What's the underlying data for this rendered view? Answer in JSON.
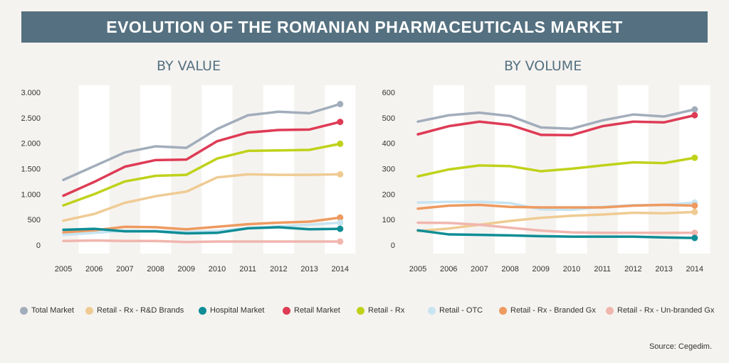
{
  "header": {
    "title": "EVOLUTION OF THE ROMANIAN PHARMACEUTICALS MARKET"
  },
  "source": "Source: Cegedim.",
  "colors": {
    "total": "#a2adbb",
    "rd": "#efcb93",
    "hospital": "#0f8d96",
    "retail": "#de3b55",
    "rx": "#bfd21a",
    "otc": "#c7e4f1",
    "branded": "#ee9a60",
    "unbranded": "#f0b6ae"
  },
  "legend": [
    {
      "key": "total",
      "label": "Total Market"
    },
    {
      "key": "rd",
      "label": "Retail - Rx - R&D Brands"
    },
    {
      "key": "hospital",
      "label": "Hospital Market"
    },
    {
      "key": "retail",
      "label": "Retail Market"
    },
    {
      "key": "rx",
      "label": "Retail - Rx"
    },
    {
      "key": "otc",
      "label": "Retail - OTC"
    },
    {
      "key": "branded",
      "label": "Retail - Rx - Branded Gx"
    },
    {
      "key": "unbranded",
      "label": "Retail - Rx - Un-branded Gx"
    }
  ],
  "chart_data": [
    {
      "type": "line",
      "title": "BY VALUE",
      "categories": [
        "2005",
        "2006",
        "2007",
        "2008",
        "2009",
        "2010",
        "2011",
        "2012",
        "2013",
        "2014"
      ],
      "ylim": [
        0,
        3000
      ],
      "yticks": [
        0,
        500,
        1000,
        1500,
        2000,
        2500,
        3000
      ],
      "ytick_labels": [
        "0",
        "500",
        "1.000",
        "1.500",
        "2.000",
        "2.500",
        "3.000"
      ],
      "series": [
        {
          "key": "total",
          "name": "Total Market",
          "values": [
            1280,
            1550,
            1820,
            1940,
            1910,
            2280,
            2550,
            2620,
            2590,
            2770
          ]
        },
        {
          "key": "retail",
          "name": "Retail Market",
          "values": [
            970,
            1240,
            1540,
            1670,
            1680,
            2040,
            2210,
            2260,
            2270,
            2420
          ]
        },
        {
          "key": "rx",
          "name": "Retail - Rx",
          "values": [
            780,
            1000,
            1250,
            1360,
            1380,
            1700,
            1850,
            1860,
            1870,
            1990
          ]
        },
        {
          "key": "rd",
          "name": "Retail - Rx - R&D Brands",
          "values": [
            480,
            610,
            830,
            960,
            1050,
            1330,
            1390,
            1380,
            1380,
            1390
          ]
        },
        {
          "key": "branded",
          "name": "Retail - Rx - Branded Gx",
          "values": [
            250,
            290,
            360,
            350,
            310,
            360,
            410,
            440,
            460,
            540
          ]
        },
        {
          "key": "otc",
          "name": "Retail - OTC",
          "values": [
            200,
            240,
            280,
            280,
            260,
            280,
            330,
            370,
            400,
            440
          ]
        },
        {
          "key": "hospital",
          "name": "Hospital Market",
          "values": [
            300,
            320,
            270,
            270,
            230,
            240,
            330,
            350,
            310,
            320
          ]
        },
        {
          "key": "unbranded",
          "name": "Retail - Rx - Un-branded Gx",
          "values": [
            80,
            90,
            80,
            80,
            60,
            70,
            70,
            70,
            70,
            70
          ]
        }
      ]
    },
    {
      "type": "line",
      "title": "BY VOLUME",
      "categories": [
        "2005",
        "2006",
        "2007",
        "2008",
        "2009",
        "2010",
        "2011",
        "2012",
        "2013",
        "2014"
      ],
      "ylim": [
        0,
        600
      ],
      "yticks": [
        0,
        100,
        200,
        300,
        400,
        500,
        600
      ],
      "ytick_labels": [
        "0",
        "100",
        "200",
        "300",
        "400",
        "500",
        "600"
      ],
      "series": [
        {
          "key": "total",
          "name": "Total Market",
          "values": [
            485,
            510,
            520,
            507,
            462,
            457,
            490,
            513,
            505,
            533
          ]
        },
        {
          "key": "retail",
          "name": "Retail Market",
          "values": [
            435,
            467,
            485,
            472,
            433,
            432,
            467,
            485,
            482,
            510
          ]
        },
        {
          "key": "rx",
          "name": "Retail - Rx",
          "values": [
            270,
            297,
            313,
            310,
            290,
            300,
            313,
            325,
            322,
            343
          ]
        },
        {
          "key": "otc",
          "name": "Retail - OTC",
          "values": [
            167,
            170,
            170,
            165,
            140,
            138,
            150,
            157,
            158,
            167
          ]
        },
        {
          "key": "branded",
          "name": "Retail - Rx - Branded Gx",
          "values": [
            143,
            155,
            158,
            150,
            148,
            148,
            148,
            155,
            158,
            155
          ]
        },
        {
          "key": "rd",
          "name": "Retail - Rx - R&D Brands",
          "values": [
            55,
            65,
            80,
            95,
            107,
            115,
            120,
            127,
            125,
            130
          ]
        },
        {
          "key": "unbranded",
          "name": "Retail - Rx - Un-branded Gx",
          "values": [
            88,
            87,
            80,
            68,
            57,
            50,
            48,
            48,
            48,
            48
          ]
        },
        {
          "key": "hospital",
          "name": "Hospital Market",
          "values": [
            58,
            42,
            40,
            38,
            35,
            33,
            33,
            33,
            30,
            28
          ]
        }
      ]
    }
  ]
}
